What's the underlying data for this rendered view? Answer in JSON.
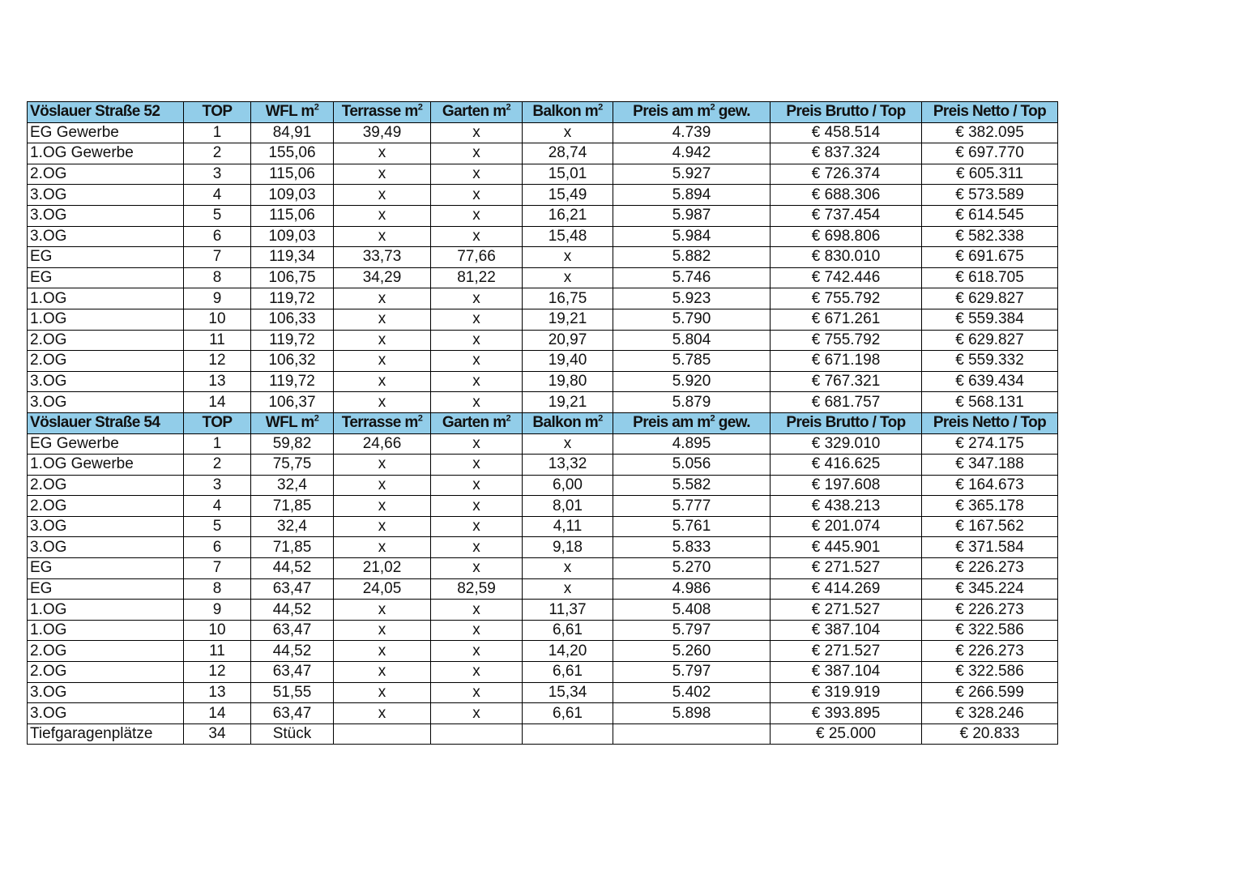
{
  "colors": {
    "header_bg": "#92cde9",
    "border": "#000000"
  },
  "column_headers": [
    "TOP",
    "WFL m²",
    "Terrasse m²",
    "Garten m²",
    "Balkon m²",
    "Preis am m² gew.",
    "Preis Brutto / Top",
    "Preis Netto / Top"
  ],
  "sections": [
    {
      "title": "Vöslauer Straße 52",
      "rows": [
        [
          "EG Gewerbe",
          "1",
          "84,91",
          "39,49",
          "x",
          "x",
          "4.739",
          "€ 458.514",
          "€ 382.095"
        ],
        [
          "1.OG Gewerbe",
          "2",
          "155,06",
          "x",
          "x",
          "28,74",
          "4.942",
          "€ 837.324",
          "€ 697.770"
        ],
        [
          "2.OG",
          "3",
          "115,06",
          "x",
          "x",
          "15,01",
          "5.927",
          "€ 726.374",
          "€ 605.311"
        ],
        [
          "3.OG",
          "4",
          "109,03",
          "x",
          "x",
          "15,49",
          "5.894",
          "€ 688.306",
          "€ 573.589"
        ],
        [
          "3.OG",
          "5",
          "115,06",
          "x",
          "x",
          "16,21",
          "5.987",
          "€ 737.454",
          "€ 614.545"
        ],
        [
          "3.OG",
          "6",
          "109,03",
          "x",
          "x",
          "15,48",
          "5.984",
          "€ 698.806",
          "€ 582.338"
        ],
        [
          "EG",
          "7",
          "119,34",
          "33,73",
          "77,66",
          "x",
          "5.882",
          "€ 830.010",
          "€ 691.675"
        ],
        [
          "EG",
          "8",
          "106,75",
          "34,29",
          "81,22",
          "x",
          "5.746",
          "€ 742.446",
          "€ 618.705"
        ],
        [
          "1.OG",
          "9",
          "119,72",
          "x",
          "x",
          "16,75",
          "5.923",
          "€ 755.792",
          "€ 629.827"
        ],
        [
          "1.OG",
          "10",
          "106,33",
          "x",
          "x",
          "19,21",
          "5.790",
          "€ 671.261",
          "€ 559.384"
        ],
        [
          "2.OG",
          "11",
          "119,72",
          "x",
          "x",
          "20,97",
          "5.804",
          "€ 755.792",
          "€ 629.827"
        ],
        [
          "2.OG",
          "12",
          "106,32",
          "x",
          "x",
          "19,40",
          "5.785",
          "€ 671.198",
          "€ 559.332"
        ],
        [
          "3.OG",
          "13",
          "119,72",
          "x",
          "x",
          "19,80",
          "5.920",
          "€ 767.321",
          "€ 639.434"
        ],
        [
          "3.OG",
          "14",
          "106,37",
          "x",
          "x",
          "19,21",
          "5.879",
          "€ 681.757",
          "€ 568.131"
        ]
      ]
    },
    {
      "title": "Vöslauer Straße 54",
      "rows": [
        [
          "EG Gewerbe",
          "1",
          "59,82",
          "24,66",
          "x",
          "x",
          "4.895",
          "€ 329.010",
          "€ 274.175"
        ],
        [
          "1.OG Gewerbe",
          "2",
          "75,75",
          "x",
          "x",
          "13,32",
          "5.056",
          "€ 416.625",
          "€ 347.188"
        ],
        [
          "2.OG",
          "3",
          "32,4",
          "x",
          "x",
          "6,00",
          "5.582",
          "€ 197.608",
          "€ 164.673"
        ],
        [
          "2.OG",
          "4",
          "71,85",
          "x",
          "x",
          "8,01",
          "5.777",
          "€ 438.213",
          "€ 365.178"
        ],
        [
          "3.OG",
          "5",
          "32,4",
          "x",
          "x",
          "4,11",
          "5.761",
          "€ 201.074",
          "€ 167.562"
        ],
        [
          "3.OG",
          "6",
          "71,85",
          "x",
          "x",
          "9,18",
          "5.833",
          "€ 445.901",
          "€ 371.584"
        ],
        [
          "EG",
          "7",
          "44,52",
          "21,02",
          "x",
          "x",
          "5.270",
          "€ 271.527",
          "€ 226.273"
        ],
        [
          "EG",
          "8",
          "63,47",
          "24,05",
          "82,59",
          "x",
          "4.986",
          "€ 414.269",
          "€ 345.224"
        ],
        [
          "1.OG",
          "9",
          "44,52",
          "x",
          "x",
          "11,37",
          "5.408",
          "€ 271.527",
          "€ 226.273"
        ],
        [
          "1.OG",
          "10",
          "63,47",
          "x",
          "x",
          "6,61",
          "5.797",
          "€ 387.104",
          "€ 322.586"
        ],
        [
          "2.OG",
          "11",
          "44,52",
          "x",
          "x",
          "14,20",
          "5.260",
          "€ 271.527",
          "€ 226.273"
        ],
        [
          "2.OG",
          "12",
          "63,47",
          "x",
          "x",
          "6,61",
          "5.797",
          "€ 387.104",
          "€ 322.586"
        ],
        [
          "3.OG",
          "13",
          "51,55",
          "x",
          "x",
          "15,34",
          "5.402",
          "€ 319.919",
          "€ 266.599"
        ],
        [
          "3.OG",
          "14",
          "63,47",
          "x",
          "x",
          "6,61",
          "5.898",
          "€ 393.895",
          "€ 328.246"
        ]
      ]
    }
  ],
  "footer_row": [
    "Tiefgaragenplätze",
    "34",
    "Stück",
    "",
    "",
    "",
    "",
    "€ 25.000",
    "€ 20.833"
  ]
}
